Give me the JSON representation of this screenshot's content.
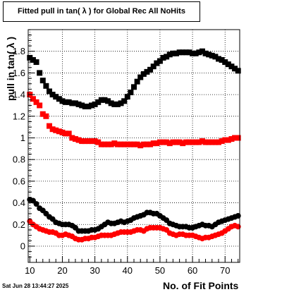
{
  "title": "Fitted pull in tan( λ ) for Global Rec All NoHits",
  "timestamp": "Sat Jun 28 13:44:27 2025",
  "chart_data": {
    "type": "scatter",
    "xlabel": "No. of Fit Points",
    "ylabel": "pull in tan( λ )",
    "xlim": [
      9.5,
      74.5
    ],
    "ylim": [
      -0.15,
      2.0
    ],
    "xticks": [
      10,
      20,
      30,
      40,
      50,
      60,
      70
    ],
    "yticks": [
      0,
      0.2,
      0.4,
      0.6,
      0.8,
      1,
      1.2,
      1.4,
      1.6,
      1.8
    ],
    "ytick_labels": [
      "0",
      "0.2",
      "0.4",
      "0.6",
      "0.8",
      "1",
      "1.2",
      "1.4",
      "1.6",
      "1.8"
    ],
    "grid": true,
    "x": [
      10,
      11,
      12,
      13,
      14,
      15,
      16,
      17,
      18,
      19,
      20,
      21,
      22,
      23,
      24,
      25,
      26,
      27,
      28,
      29,
      30,
      31,
      32,
      33,
      34,
      35,
      36,
      37,
      38,
      39,
      40,
      41,
      42,
      43,
      44,
      45,
      46,
      47,
      48,
      49,
      50,
      51,
      52,
      53,
      54,
      55,
      56,
      57,
      58,
      59,
      60,
      61,
      62,
      63,
      64,
      65,
      66,
      67,
      68,
      69,
      70,
      71,
      72,
      73,
      74
    ],
    "series": [
      {
        "marker": "square",
        "color": "#000000",
        "values": [
          1.74,
          1.72,
          1.7,
          1.6,
          1.53,
          1.48,
          1.43,
          1.4,
          1.38,
          1.36,
          1.34,
          1.33,
          1.33,
          1.32,
          1.32,
          1.31,
          1.3,
          1.29,
          1.29,
          1.3,
          1.31,
          1.33,
          1.35,
          1.35,
          1.34,
          1.32,
          1.31,
          1.31,
          1.32,
          1.34,
          1.38,
          1.42,
          1.47,
          1.52,
          1.56,
          1.59,
          1.61,
          1.63,
          1.66,
          1.69,
          1.71,
          1.74,
          1.75,
          1.77,
          1.78,
          1.78,
          1.79,
          1.79,
          1.79,
          1.79,
          1.78,
          1.78,
          1.79,
          1.8,
          1.78,
          1.77,
          1.76,
          1.75,
          1.73,
          1.72,
          1.7,
          1.68,
          1.66,
          1.64,
          1.62
        ]
      },
      {
        "marker": "square",
        "color": "#ff0000",
        "values": [
          1.4,
          1.36,
          1.33,
          1.3,
          1.22,
          1.2,
          1.11,
          1.08,
          1.07,
          1.06,
          1.05,
          1.04,
          1.04,
          1.0,
          0.99,
          0.98,
          0.97,
          0.97,
          0.97,
          0.97,
          0.97,
          0.96,
          0.94,
          0.94,
          0.94,
          0.94,
          0.95,
          0.94,
          0.94,
          0.94,
          0.94,
          0.94,
          0.94,
          0.94,
          0.93,
          0.94,
          0.94,
          0.94,
          0.95,
          0.95,
          0.96,
          0.96,
          0.96,
          0.95,
          0.96,
          0.96,
          0.96,
          0.95,
          0.96,
          0.96,
          0.96,
          0.96,
          0.96,
          0.97,
          0.96,
          0.96,
          0.96,
          0.96,
          0.96,
          0.97,
          0.98,
          0.98,
          0.99,
          1.0,
          1.0
        ]
      },
      {
        "marker": "circle",
        "color": "#000000",
        "values": [
          0.43,
          0.42,
          0.39,
          0.35,
          0.33,
          0.3,
          0.27,
          0.25,
          0.22,
          0.21,
          0.2,
          0.2,
          0.2,
          0.19,
          0.17,
          0.14,
          0.14,
          0.14,
          0.14,
          0.15,
          0.15,
          0.16,
          0.18,
          0.2,
          0.22,
          0.21,
          0.21,
          0.22,
          0.23,
          0.22,
          0.23,
          0.24,
          0.26,
          0.27,
          0.28,
          0.29,
          0.31,
          0.31,
          0.3,
          0.3,
          0.28,
          0.26,
          0.24,
          0.21,
          0.2,
          0.19,
          0.18,
          0.18,
          0.18,
          0.17,
          0.17,
          0.18,
          0.19,
          0.2,
          0.19,
          0.19,
          0.18,
          0.2,
          0.22,
          0.23,
          0.24,
          0.25,
          0.26,
          0.27,
          0.28
        ]
      },
      {
        "marker": "circle",
        "color": "#ff0000",
        "values": [
          0.23,
          0.2,
          0.18,
          0.16,
          0.15,
          0.14,
          0.13,
          0.13,
          0.12,
          0.1,
          0.1,
          0.11,
          0.1,
          0.09,
          0.07,
          0.06,
          0.06,
          0.07,
          0.07,
          0.08,
          0.08,
          0.09,
          0.1,
          0.1,
          0.1,
          0.1,
          0.11,
          0.12,
          0.13,
          0.13,
          0.13,
          0.13,
          0.14,
          0.15,
          0.15,
          0.14,
          0.16,
          0.17,
          0.17,
          0.17,
          0.17,
          0.16,
          0.15,
          0.12,
          0.11,
          0.1,
          0.11,
          0.11,
          0.1,
          0.1,
          0.1,
          0.09,
          0.08,
          0.07,
          0.08,
          0.08,
          0.09,
          0.1,
          0.11,
          0.12,
          0.14,
          0.16,
          0.18,
          0.19,
          0.18
        ]
      }
    ]
  }
}
